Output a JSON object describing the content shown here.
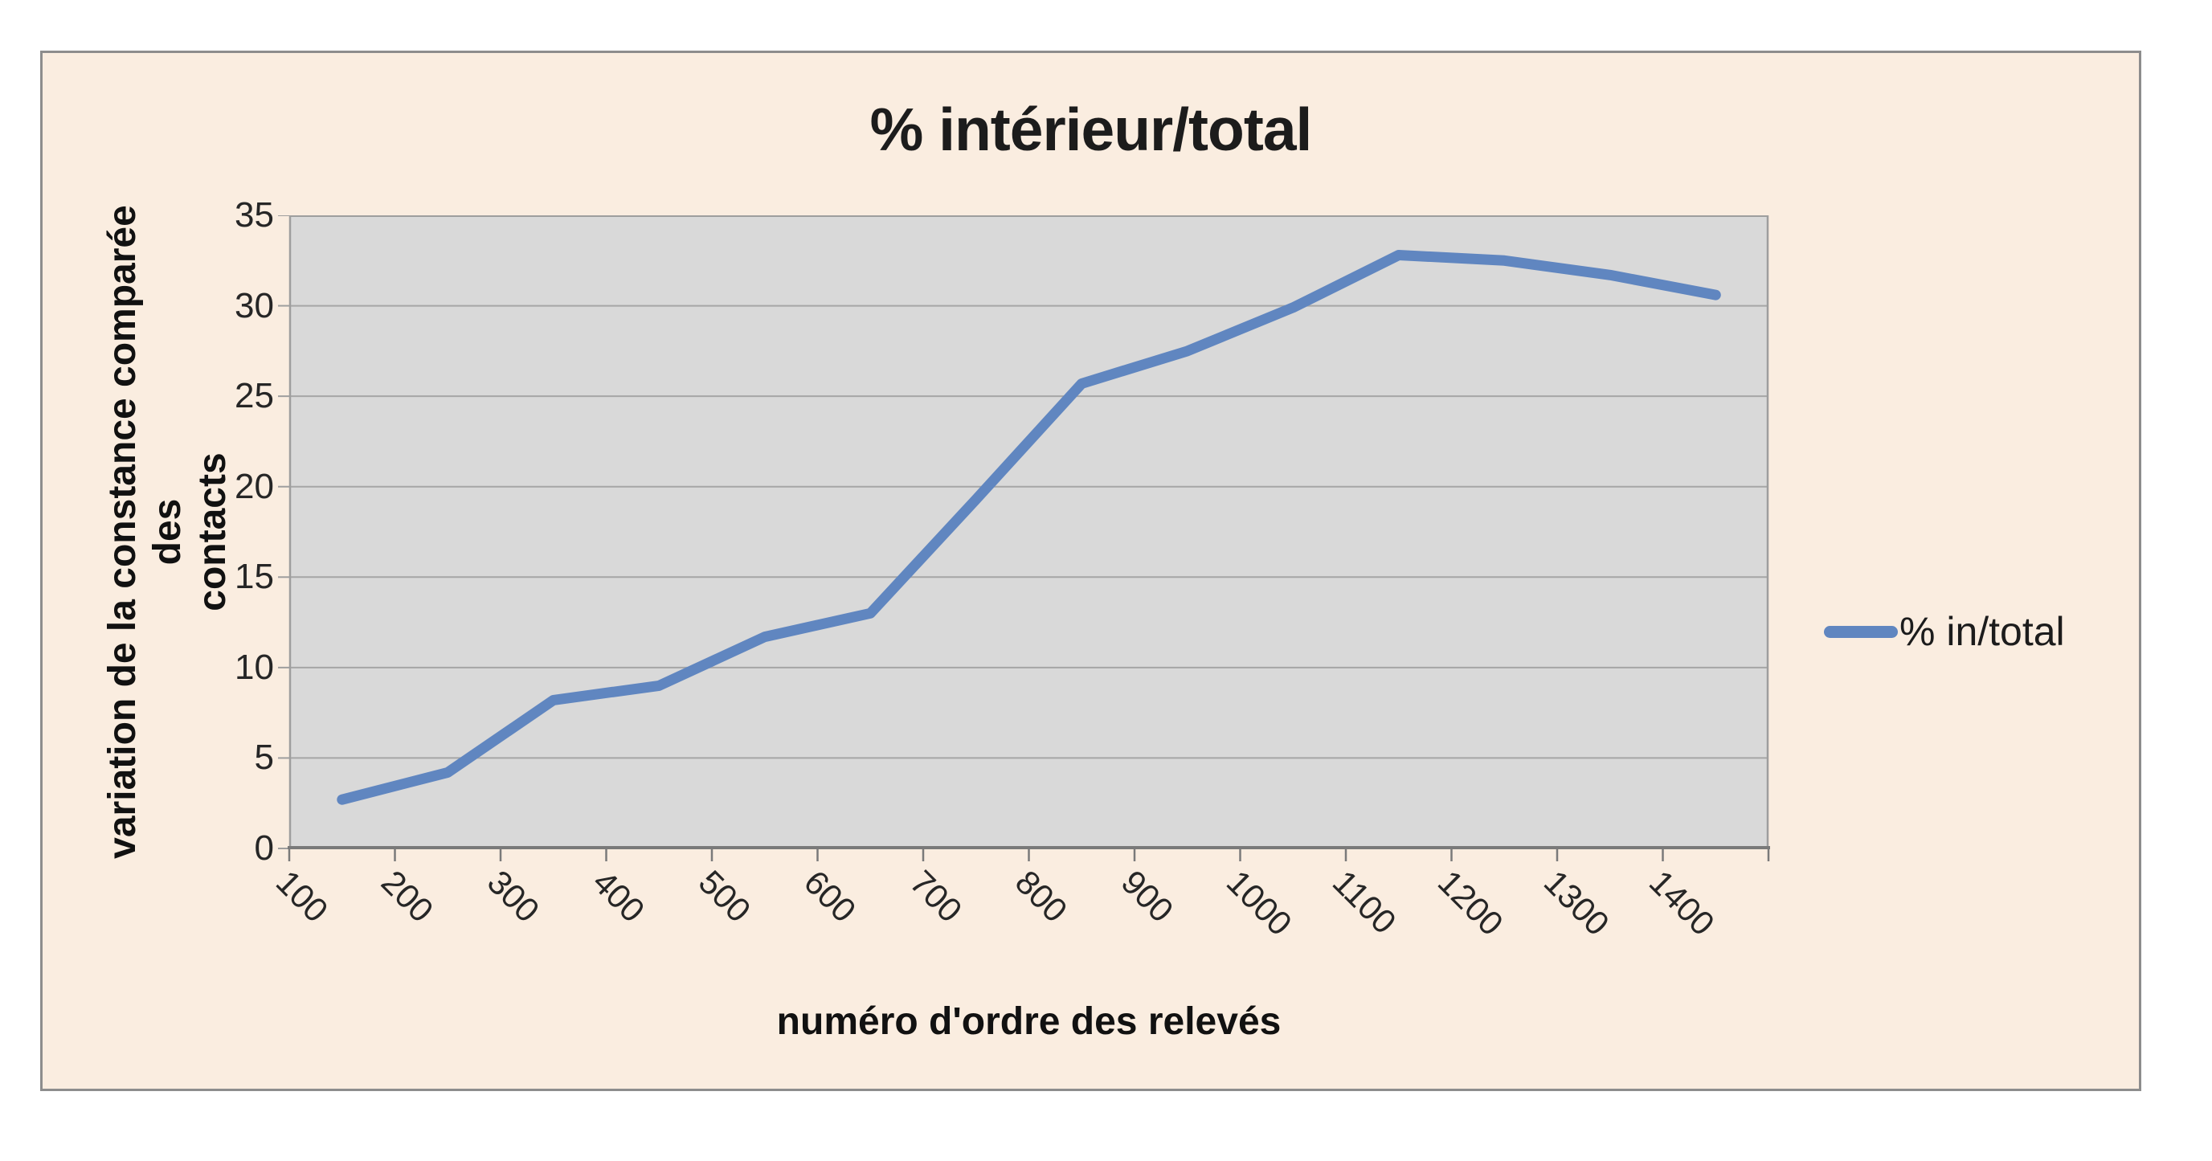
{
  "chart_data": {
    "type": "line",
    "title": "% intérieur/total",
    "xlabel": "numéro d'ordre des relevés",
    "ylabel_line1": "variation de la constance comparée des",
    "ylabel_line2": "contacts",
    "categories": [
      "100",
      "200",
      "300",
      "400",
      "500",
      "600",
      "700",
      "800",
      "900",
      "1000",
      "1100",
      "1200",
      "1300",
      "1400"
    ],
    "series": [
      {
        "name": "% in/total",
        "values": [
          2.7,
          4.2,
          8.2,
          9.0,
          11.7,
          13.0,
          19.3,
          25.7,
          27.5,
          29.9,
          32.8,
          32.5,
          31.7,
          30.6
        ]
      }
    ],
    "ylim": [
      0,
      35
    ],
    "yticks": [
      0,
      5,
      10,
      15,
      20,
      25,
      30,
      35
    ],
    "grid": true,
    "legend_position": "right"
  },
  "colors": {
    "chart_background": "#FAEDE0",
    "chart_border": "#8D8D8D",
    "plot_background": "#D9D9D9",
    "gridline": "#A6A6A6",
    "plot_frame": "#9E9E9E",
    "axis_line": "#7A7A7A",
    "series_line": "#6086C0",
    "title_text": "#1c1c1c"
  }
}
